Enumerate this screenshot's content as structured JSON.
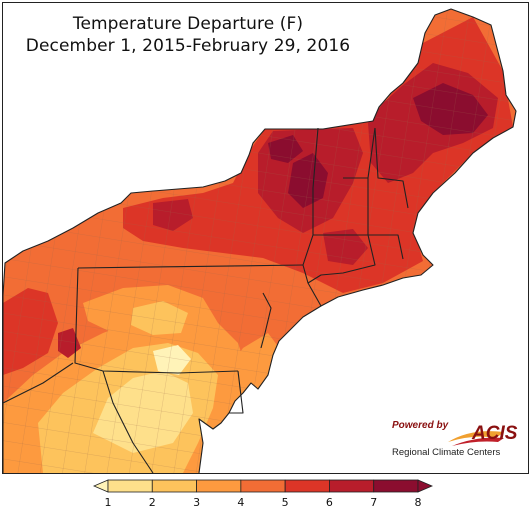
{
  "title": {
    "line1": "Temperature Departure (F)",
    "line2": "December 1, 2015-February 29, 2016"
  },
  "legend": {
    "labels": [
      "1",
      "2",
      "3",
      "4",
      "5",
      "6",
      "7",
      "8"
    ],
    "colors": [
      "#fff3b8",
      "#fee08b",
      "#fdc35c",
      "#fd9a3f",
      "#f26d35",
      "#dc3527",
      "#b81d2b",
      "#8b0d2f"
    ]
  },
  "logo": {
    "powered_by": "Powered by",
    "brand": "ACIS",
    "subtitle": "Regional Climate Centers"
  },
  "colors": {
    "water": "#ffffff",
    "outline": "#111111",
    "county_lines": "#9b6a4a"
  }
}
